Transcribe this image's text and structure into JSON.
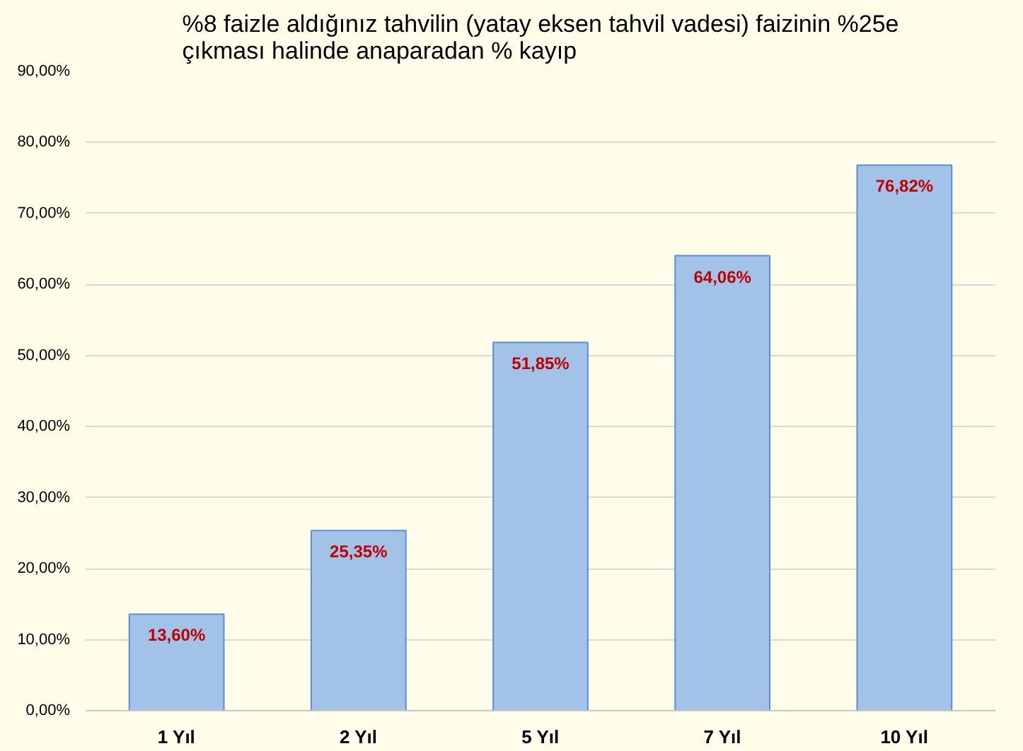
{
  "chart_data": {
    "type": "bar",
    "title": "%8 faizle aldığınız tahvilin (yatay eksen tahvil vadesi) faizinin %25e çıkması halinde anaparadan % kayıp",
    "categories": [
      "1 Yıl",
      "2 Yıl",
      "5 Yıl",
      "7 Yıl",
      "10 Yıl"
    ],
    "values": [
      13.6,
      25.35,
      51.85,
      64.06,
      76.82
    ],
    "value_labels": [
      "13,60%",
      "25,35%",
      "51,85%",
      "64,06%",
      "76,82%"
    ],
    "color": "#a3c2e8",
    "ylim": [
      0,
      90
    ],
    "yticks": [
      {
        "value": 0,
        "label": "0,00%"
      },
      {
        "value": 10,
        "label": "10,00%"
      },
      {
        "value": 20,
        "label": "20,00%"
      },
      {
        "value": 30,
        "label": "30,00%"
      },
      {
        "value": 40,
        "label": "40,00%"
      },
      {
        "value": 50,
        "label": "50,00%"
      },
      {
        "value": 60,
        "label": "60,00%"
      },
      {
        "value": 70,
        "label": "70,00%"
      },
      {
        "value": 80,
        "label": "80,00%"
      },
      {
        "value": 90,
        "label": "90,00%"
      }
    ],
    "grid": "y"
  }
}
